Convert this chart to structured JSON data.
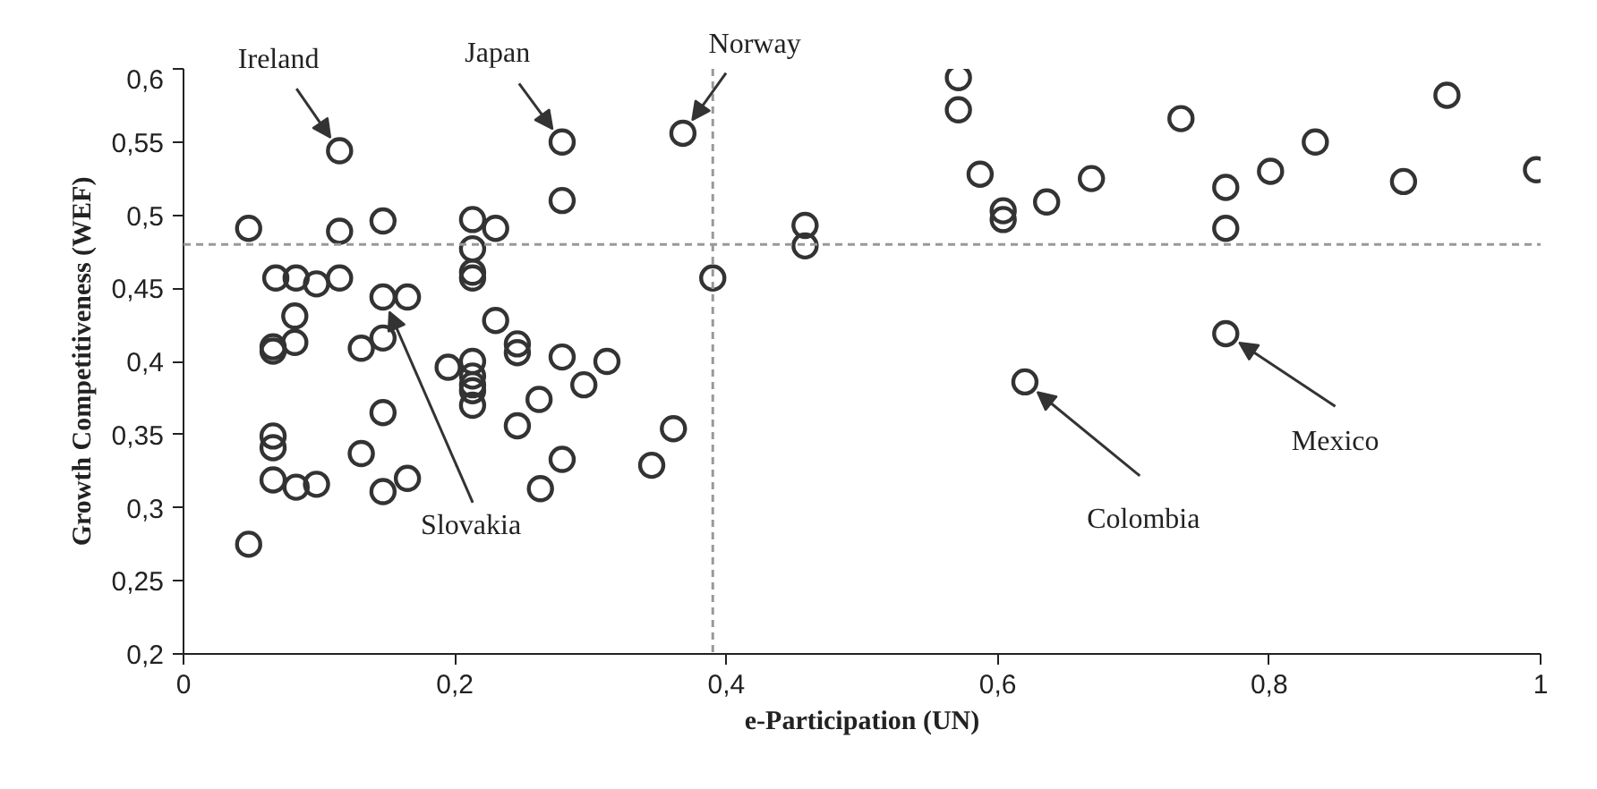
{
  "chart_data": {
    "type": "scatter",
    "xlabel": "e-Participation (UN)",
    "ylabel": "Growth Competitiveness (WEF)",
    "xlim": [
      0,
      1
    ],
    "ylim": [
      0.2,
      0.6
    ],
    "xticks": [
      0,
      {
        "value": 0.2,
        "label": "0,2"
      },
      {
        "value": 0.4,
        "label": "0,4"
      },
      {
        "value": 0.6,
        "label": "0,6"
      },
      {
        "value": 0.8,
        "label": "0,8"
      },
      1
    ],
    "yticks": [
      {
        "value": 0.2,
        "label": "0,2"
      },
      {
        "value": 0.25,
        "label": "0,25"
      },
      {
        "value": 0.3,
        "label": "0,3"
      },
      {
        "value": 0.35,
        "label": "0,35"
      },
      {
        "value": 0.4,
        "label": "0,4"
      },
      {
        "value": 0.45,
        "label": "0,45"
      },
      {
        "value": 0.5,
        "label": "0,5"
      },
      {
        "value": 0.55,
        "label": "0,55"
      },
      {
        "value": 0.6,
        "label": "0,6"
      }
    ],
    "grid": false,
    "marker": "circle",
    "ref_lines": [
      {
        "axis": "y",
        "value": 0.48,
        "label": null,
        "color": "#999999",
        "line_style": "dashed"
      },
      {
        "axis": "x",
        "value": 0.39,
        "label": null,
        "color": "#999999",
        "line_style": "dashed"
      }
    ],
    "annotations": [
      {
        "text": "Ireland",
        "x": 0.115,
        "y": 0.544
      },
      {
        "text": "Japan",
        "x": 0.279,
        "y": 0.55
      },
      {
        "text": "Norway",
        "x": 0.368,
        "y": 0.556
      },
      {
        "text": "Slovakia",
        "x": 0.147,
        "y": 0.444
      },
      {
        "text": "Colombia",
        "x": 0.62,
        "y": 0.386
      },
      {
        "text": "Mexico",
        "x": 0.768,
        "y": 0.419
      }
    ],
    "series": [
      {
        "color": "#333333",
        "x": [
          0.115,
          0.048,
          0.115,
          0.147,
          0.213,
          0.23,
          0.213,
          0.213,
          0.213,
          0.068,
          0.083,
          0.098,
          0.115,
          0.147,
          0.165,
          0.082,
          0.066,
          0.066,
          0.082,
          0.131,
          0.147,
          0.195,
          0.213,
          0.213,
          0.213,
          0.213,
          0.213,
          0.147,
          0.066,
          0.066,
          0.131,
          0.066,
          0.083,
          0.098,
          0.147,
          0.165,
          0.048,
          0.279,
          0.279,
          0.23,
          0.39,
          0.246,
          0.246,
          0.279,
          0.312,
          0.295,
          0.262,
          0.246,
          0.361,
          0.279,
          0.345,
          0.263,
          0.368,
          0.571,
          0.571,
          0.587,
          0.458,
          0.458,
          0.604,
          0.604,
          0.636,
          0.669,
          0.62,
          0.735,
          0.931,
          0.834,
          0.801,
          0.768,
          0.768,
          0.899,
          0.997,
          0.768
        ],
        "values": [
          0.544,
          0.491,
          0.489,
          0.496,
          0.497,
          0.491,
          0.477,
          0.461,
          0.457,
          0.457,
          0.457,
          0.453,
          0.457,
          0.444,
          0.444,
          0.431,
          0.41,
          0.407,
          0.413,
          0.409,
          0.416,
          0.396,
          0.4,
          0.39,
          0.384,
          0.38,
          0.37,
          0.365,
          0.349,
          0.341,
          0.337,
          0.319,
          0.314,
          0.316,
          0.311,
          0.32,
          0.275,
          0.55,
          0.51,
          0.428,
          0.457,
          0.412,
          0.406,
          0.403,
          0.4,
          0.384,
          0.374,
          0.356,
          0.354,
          0.333,
          0.329,
          0.313,
          0.556,
          0.594,
          0.572,
          0.528,
          0.493,
          0.479,
          0.503,
          0.497,
          0.509,
          0.525,
          0.386,
          0.566,
          0.582,
          0.55,
          0.53,
          0.519,
          0.491,
          0.523,
          0.531,
          0.419
        ]
      }
    ]
  }
}
